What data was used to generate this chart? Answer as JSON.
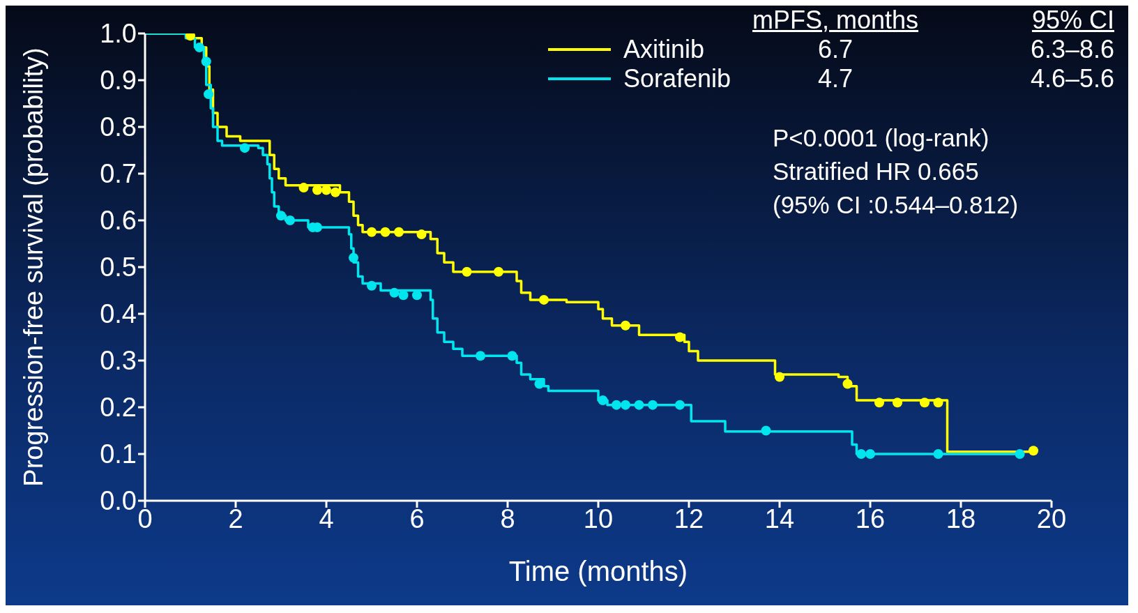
{
  "chart_data": {
    "type": "step",
    "xlabel": "Time (months)",
    "ylabel": "Progression-free survival (probability)",
    "xlim": [
      0,
      20
    ],
    "xticks": [
      0,
      2,
      4,
      6,
      8,
      10,
      12,
      14,
      16,
      18,
      20
    ],
    "ylim": [
      0,
      1
    ],
    "yticks": [
      {
        "value": 0,
        "label": "0.0"
      },
      0.1,
      0.2,
      0.3,
      0.4,
      0.5,
      0.6,
      0.7,
      0.8,
      0.9,
      {
        "value": 1,
        "label": "1.0"
      }
    ],
    "legend": "top right",
    "series": [
      {
        "name": "Axitinib",
        "color": "#ffff00",
        "x": [
          0,
          1.05,
          1.25,
          1.35,
          1.42,
          1.5,
          1.6,
          1.8,
          2.1,
          2.75,
          2.85,
          2.95,
          3.1,
          4.3,
          4.5,
          4.6,
          4.7,
          4.8,
          6.3,
          6.45,
          6.6,
          6.8,
          8.2,
          8.3,
          8.5,
          9.3,
          10.0,
          10.1,
          10.3,
          10.9,
          11.9,
          12.0,
          12.2,
          13.9,
          15.3,
          15.5,
          15.7,
          17.7,
          19.6
        ],
        "values": [
          1.0,
          0.99,
          0.97,
          0.93,
          0.88,
          0.83,
          0.8,
          0.78,
          0.77,
          0.74,
          0.71,
          0.69,
          0.675,
          0.66,
          0.64,
          0.61,
          0.59,
          0.575,
          0.56,
          0.53,
          0.51,
          0.49,
          0.47,
          0.445,
          0.43,
          0.425,
          0.41,
          0.39,
          0.375,
          0.355,
          0.34,
          0.32,
          0.3,
          0.27,
          0.265,
          0.245,
          0.215,
          0.105,
          0.105
        ]
      },
      {
        "name": "Sorafenib",
        "color": "#00e5ee",
        "x": [
          0,
          0.9,
          1.1,
          1.3,
          1.35,
          1.45,
          1.5,
          1.6,
          1.7,
          2.5,
          2.6,
          2.7,
          2.75,
          2.8,
          2.85,
          2.95,
          3.1,
          3.6,
          4.5,
          4.55,
          4.6,
          4.7,
          4.8,
          5.2,
          6.3,
          6.35,
          6.45,
          6.6,
          6.8,
          7.0,
          8.2,
          8.3,
          8.5,
          8.8,
          8.9,
          10.0,
          10.2,
          12.05,
          12.8,
          15.6,
          15.7,
          19.3
        ],
        "values": [
          1.0,
          0.99,
          0.97,
          0.94,
          0.89,
          0.84,
          0.8,
          0.77,
          0.76,
          0.755,
          0.74,
          0.72,
          0.69,
          0.66,
          0.63,
          0.61,
          0.6,
          0.585,
          0.57,
          0.54,
          0.51,
          0.48,
          0.465,
          0.45,
          0.43,
          0.39,
          0.36,
          0.34,
          0.325,
          0.31,
          0.295,
          0.27,
          0.26,
          0.245,
          0.235,
          0.215,
          0.205,
          0.17,
          0.148,
          0.12,
          0.1,
          0.1
        ]
      },
      {
        "type": "scatter",
        "marker": "circle",
        "color": "#ffff00",
        "x": [
          1.0,
          3.5,
          3.8,
          4.0,
          4.2,
          5.0,
          5.3,
          5.6,
          6.1,
          7.1,
          7.8,
          8.8,
          10.6,
          11.8,
          14.0,
          15.5,
          16.2,
          16.6,
          17.2,
          17.5,
          19.6
        ],
        "values": [
          0.995,
          0.67,
          0.665,
          0.665,
          0.66,
          0.575,
          0.575,
          0.575,
          0.57,
          0.49,
          0.49,
          0.43,
          0.375,
          0.35,
          0.265,
          0.25,
          0.21,
          0.21,
          0.21,
          0.21,
          0.107
        ]
      },
      {
        "type": "scatter",
        "marker": "circle",
        "color": "#00e5ee",
        "x": [
          1.2,
          1.35,
          1.4,
          2.2,
          3.0,
          3.2,
          3.7,
          3.8,
          4.6,
          5.0,
          5.5,
          5.7,
          6.0,
          7.4,
          8.1,
          8.7,
          10.1,
          10.4,
          10.6,
          10.9,
          11.2,
          11.8,
          13.7,
          15.8,
          16.0,
          17.5,
          19.3
        ],
        "values": [
          0.97,
          0.94,
          0.87,
          0.755,
          0.61,
          0.6,
          0.585,
          0.585,
          0.52,
          0.46,
          0.445,
          0.44,
          0.44,
          0.31,
          0.31,
          0.25,
          0.215,
          0.205,
          0.205,
          0.205,
          0.205,
          0.205,
          0.15,
          0.1,
          0.1,
          0.1,
          0.1
        ]
      }
    ],
    "annotations": [
      "mPFS, months",
      "95% CI",
      "6.7",
      "6.3–8.6",
      "4.7",
      "4.6–5.6",
      "P<0.0001 (log-rank)",
      "Stratified HR 0.665",
      "(95% CI :0.544–0.812)"
    ]
  }
}
